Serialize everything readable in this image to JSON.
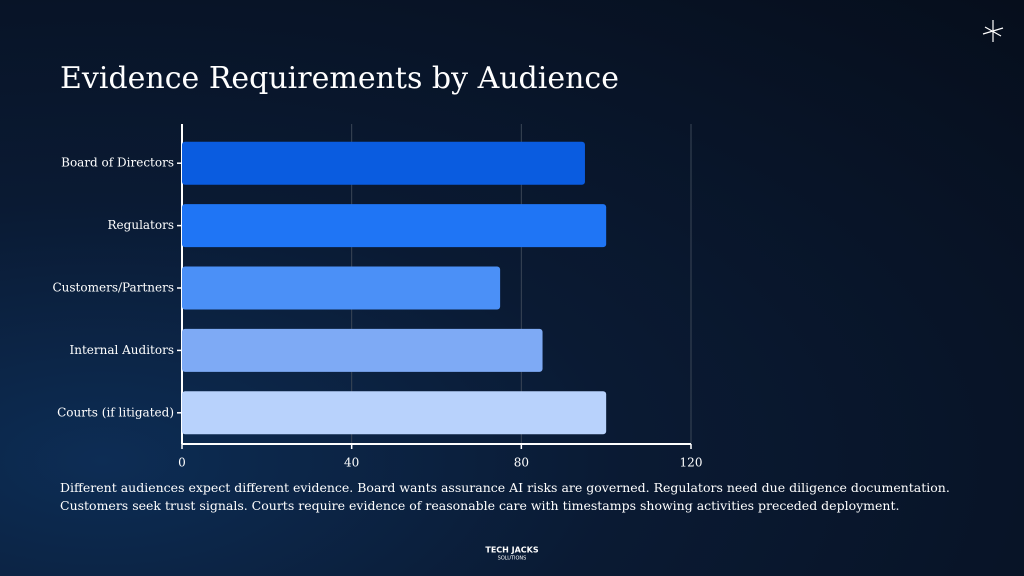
{
  "chart_data": {
    "type": "bar",
    "orientation": "horizontal",
    "title": "Evidence Requirements by Audience",
    "categories": [
      "Board of Directors",
      "Regulators",
      "Customers/Partners",
      "Internal Auditors",
      "Courts (if litigated)"
    ],
    "values": [
      95,
      100,
      75,
      85,
      100
    ],
    "colors": [
      "#0a5ce0",
      "#1f75f5",
      "#4b90f7",
      "#7eaaf5",
      "#b8d2fc"
    ],
    "xlim": [
      0,
      120
    ],
    "xticks": [
      0,
      40,
      80,
      120
    ],
    "grid": true,
    "caption": "Different audiences expect different evidence. Board wants assurance AI risks are governed. Regulators need due diligence documentation. Customers seek trust signals. Courts require evidence of reasonable care with timestamps showing activities preceded deployment."
  },
  "footer": {
    "logo": "TECH JACKS",
    "logo_sub": "SOLUTIONS"
  }
}
